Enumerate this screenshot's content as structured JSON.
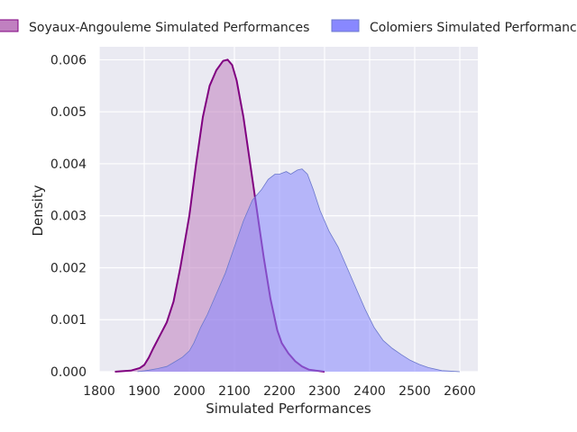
{
  "chart_data": {
    "type": "area",
    "xlabel": "Simulated Performances",
    "ylabel": "Density",
    "xlim": [
      1800,
      2640
    ],
    "ylim": [
      0,
      0.00625
    ],
    "xticks": [
      1800,
      1900,
      2000,
      2100,
      2200,
      2300,
      2400,
      2500,
      2600
    ],
    "yticks": [
      0.0,
      0.001,
      0.002,
      0.003,
      0.004,
      0.005,
      0.006
    ],
    "ytick_labels": [
      "0.000",
      "0.001",
      "0.002",
      "0.003",
      "0.004",
      "0.005",
      "0.006"
    ],
    "grid": true,
    "legend_position": "top",
    "series": [
      {
        "name": "Soyaux-Angouleme Simulated Performances",
        "fill": "#c080c0",
        "line": "#800080",
        "points": [
          [
            1835,
            0
          ],
          [
            1870,
            2e-05
          ],
          [
            1890,
            7e-05
          ],
          [
            1900,
            0.00013
          ],
          [
            1910,
            0.00027
          ],
          [
            1920,
            0.00045
          ],
          [
            1935,
            0.0007
          ],
          [
            1950,
            0.00095
          ],
          [
            1965,
            0.00135
          ],
          [
            1980,
            0.002
          ],
          [
            2000,
            0.003
          ],
          [
            2015,
            0.004
          ],
          [
            2030,
            0.0049
          ],
          [
            2045,
            0.0055
          ],
          [
            2060,
            0.0058
          ],
          [
            2075,
            0.00598
          ],
          [
            2085,
            0.006
          ],
          [
            2095,
            0.0059
          ],
          [
            2105,
            0.0056
          ],
          [
            2120,
            0.0049
          ],
          [
            2135,
            0.004
          ],
          [
            2150,
            0.0031
          ],
          [
            2165,
            0.0022
          ],
          [
            2180,
            0.0014
          ],
          [
            2195,
            0.0008
          ],
          [
            2205,
            0.00055
          ],
          [
            2220,
            0.00035
          ],
          [
            2235,
            0.0002
          ],
          [
            2250,
            0.0001
          ],
          [
            2265,
            4e-05
          ],
          [
            2280,
            2e-05
          ],
          [
            2300,
            0
          ]
        ]
      },
      {
        "name": "Colomiers Simulated Performances",
        "fill": "#8888ff",
        "line": "#6b78cc",
        "points": [
          [
            1885,
            0
          ],
          [
            1910,
            3e-05
          ],
          [
            1930,
            6e-05
          ],
          [
            1950,
            0.0001
          ],
          [
            1970,
            0.0002
          ],
          [
            1985,
            0.00028
          ],
          [
            2000,
            0.0004
          ],
          [
            2010,
            0.00055
          ],
          [
            2025,
            0.00085
          ],
          [
            2040,
            0.0011
          ],
          [
            2060,
            0.0015
          ],
          [
            2080,
            0.0019
          ],
          [
            2100,
            0.0024
          ],
          [
            2120,
            0.0029
          ],
          [
            2140,
            0.0033
          ],
          [
            2160,
            0.0035
          ],
          [
            2175,
            0.0037
          ],
          [
            2190,
            0.0038
          ],
          [
            2200,
            0.0038
          ],
          [
            2215,
            0.00385
          ],
          [
            2225,
            0.0038
          ],
          [
            2240,
            0.00388
          ],
          [
            2250,
            0.0039
          ],
          [
            2262,
            0.0038
          ],
          [
            2275,
            0.0035
          ],
          [
            2290,
            0.0031
          ],
          [
            2310,
            0.0027
          ],
          [
            2330,
            0.0024
          ],
          [
            2350,
            0.002
          ],
          [
            2370,
            0.0016
          ],
          [
            2390,
            0.0012
          ],
          [
            2410,
            0.00085
          ],
          [
            2430,
            0.0006
          ],
          [
            2450,
            0.00045
          ],
          [
            2470,
            0.00033
          ],
          [
            2490,
            0.00022
          ],
          [
            2510,
            0.00014
          ],
          [
            2530,
            8e-05
          ],
          [
            2560,
            2e-05
          ],
          [
            2600,
            0
          ]
        ]
      }
    ]
  }
}
